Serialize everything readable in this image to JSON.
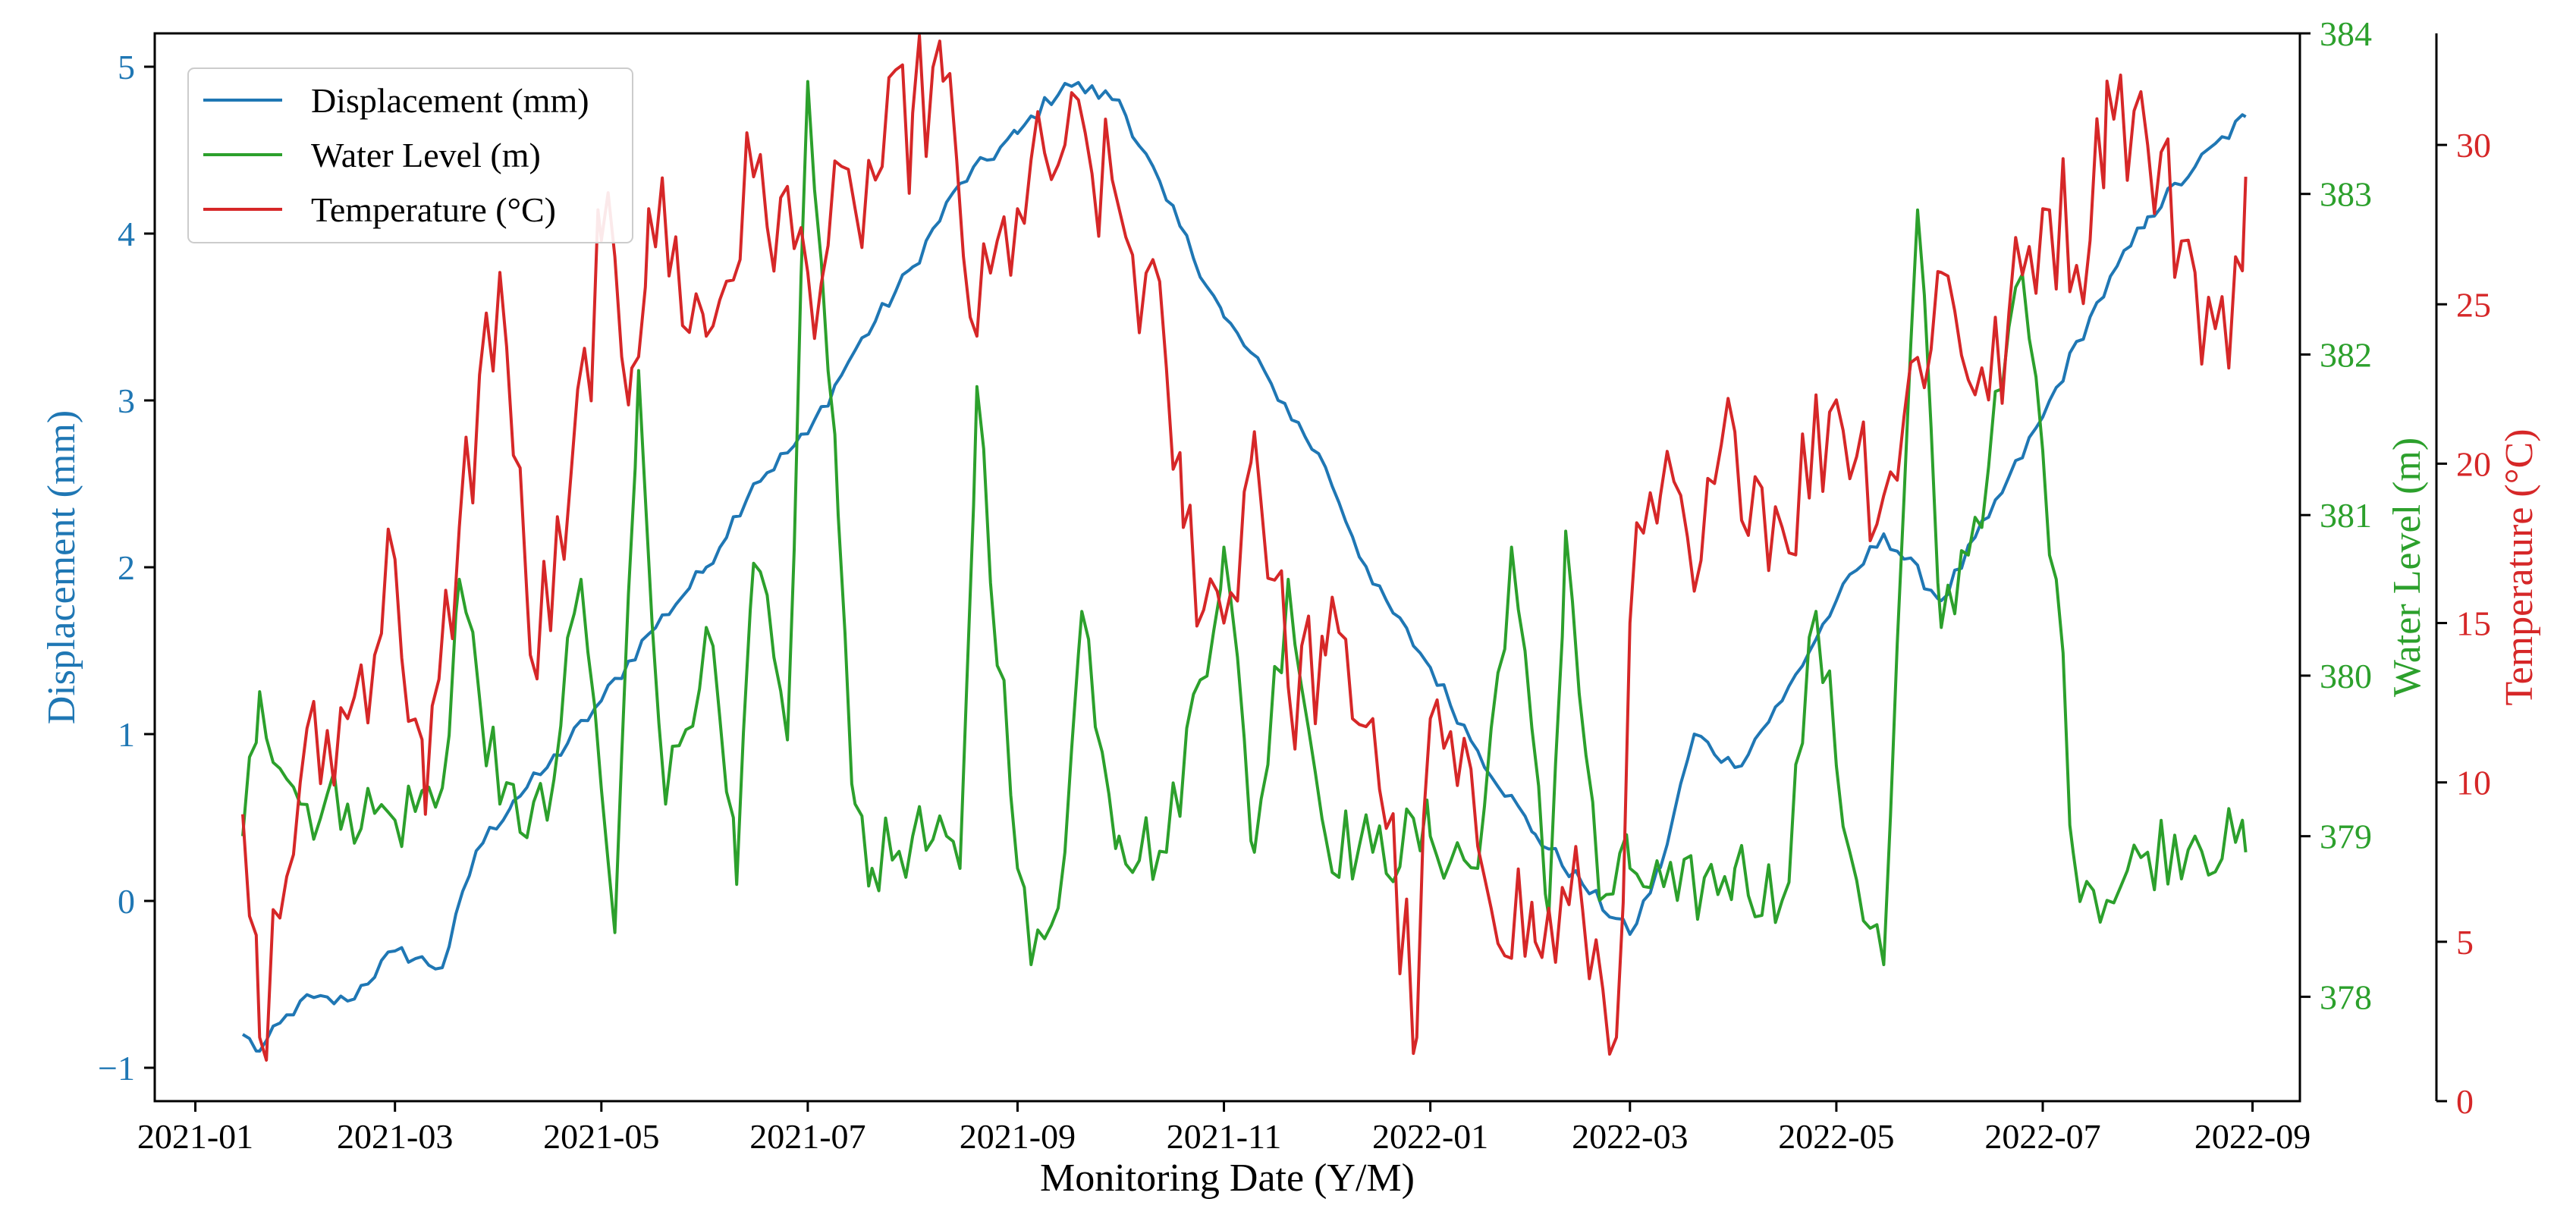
{
  "chart_data": {
    "type": "line",
    "xlabel": "Monitoring Date (Y/M)",
    "x_ticks": [
      "2021-01",
      "2021-03",
      "2021-05",
      "2021-07",
      "2021-09",
      "2021-11",
      "2022-01",
      "2022-03",
      "2022-05",
      "2022-07",
      "2022-09"
    ],
    "x_range": [
      "2020-12-20",
      "2022-09-15"
    ],
    "legend_position": "top-left",
    "grid": false,
    "axes": {
      "left": {
        "label": "Displacement (mm)",
        "color": "#1f77b4",
        "ylim": [
          -1.2,
          5.2
        ],
        "ticks": [
          "−1",
          "0",
          "1",
          "2",
          "3",
          "4",
          "5"
        ]
      },
      "right1": {
        "label": "Water Level (m)",
        "color": "#2ca02c",
        "ylim": [
          377.35,
          384.0
        ],
        "ticks": [
          "378",
          "379",
          "380",
          "381",
          "382",
          "383",
          "384"
        ]
      },
      "right2": {
        "label": "Temperature (°C)",
        "color": "#d62728",
        "ylim": [
          0,
          33.5
        ],
        "ticks": [
          "0",
          "5",
          "10",
          "15",
          "20",
          "25",
          "30"
        ]
      }
    },
    "series": [
      {
        "name": "Displacement (mm)",
        "axis": "left",
        "color": "#1f77b4",
        "points": [
          [
            "2021-01-15",
            -0.8
          ],
          [
            "2021-01-20",
            -0.9
          ],
          [
            "2021-02-01",
            -0.6
          ],
          [
            "2021-02-15",
            -0.6
          ],
          [
            "2021-03-01",
            -0.3
          ],
          [
            "2021-03-15",
            -0.4
          ],
          [
            "2021-03-25",
            0.3
          ],
          [
            "2021-04-05",
            0.6
          ],
          [
            "2021-04-15",
            0.8
          ],
          [
            "2021-05-01",
            1.2
          ],
          [
            "2021-05-15",
            1.6
          ],
          [
            "2021-06-01",
            2.0
          ],
          [
            "2021-06-15",
            2.5
          ],
          [
            "2021-07-01",
            2.8
          ],
          [
            "2021-07-15",
            3.3
          ],
          [
            "2021-08-01",
            3.8
          ],
          [
            "2021-08-15",
            4.3
          ],
          [
            "2021-09-01",
            4.6
          ],
          [
            "2021-09-15",
            4.9
          ],
          [
            "2021-10-01",
            4.8
          ],
          [
            "2021-10-15",
            4.2
          ],
          [
            "2021-11-01",
            3.5
          ],
          [
            "2021-11-15",
            3.1
          ],
          [
            "2021-12-01",
            2.6
          ],
          [
            "2021-12-15",
            1.9
          ],
          [
            "2022-01-01",
            1.4
          ],
          [
            "2022-01-15",
            0.9
          ],
          [
            "2022-02-01",
            0.4
          ],
          [
            "2022-02-15",
            0.1
          ],
          [
            "2022-03-01",
            -0.2
          ],
          [
            "2022-03-10",
            0.2
          ],
          [
            "2022-03-20",
            1.0
          ],
          [
            "2022-04-01",
            0.8
          ],
          [
            "2022-04-15",
            1.2
          ],
          [
            "2022-05-01",
            1.8
          ],
          [
            "2022-05-15",
            2.2
          ],
          [
            "2022-06-01",
            1.8
          ],
          [
            "2022-06-15",
            2.3
          ],
          [
            "2022-07-01",
            2.9
          ],
          [
            "2022-07-15",
            3.5
          ],
          [
            "2022-08-01",
            4.1
          ],
          [
            "2022-08-15",
            4.4
          ],
          [
            "2022-08-30",
            4.7
          ]
        ]
      },
      {
        "name": "Water Level (m)",
        "axis": "right1",
        "color": "#2ca02c",
        "points": [
          [
            "2021-01-15",
            379.0
          ],
          [
            "2021-01-20",
            379.9
          ],
          [
            "2021-02-01",
            379.2
          ],
          [
            "2021-02-15",
            379.2
          ],
          [
            "2021-03-01",
            379.1
          ],
          [
            "2021-03-15",
            379.3
          ],
          [
            "2021-03-20",
            380.6
          ],
          [
            "2021-04-01",
            379.2
          ],
          [
            "2021-04-15",
            379.1
          ],
          [
            "2021-04-25",
            380.6
          ],
          [
            "2021-05-05",
            378.4
          ],
          [
            "2021-05-12",
            381.9
          ],
          [
            "2021-05-20",
            379.2
          ],
          [
            "2021-06-01",
            380.3
          ],
          [
            "2021-06-10",
            378.7
          ],
          [
            "2021-06-15",
            380.7
          ],
          [
            "2021-06-25",
            379.6
          ],
          [
            "2021-07-01",
            383.7
          ],
          [
            "2021-07-10",
            381.0
          ],
          [
            "2021-07-15",
            379.2
          ],
          [
            "2021-07-20",
            378.8
          ],
          [
            "2021-08-01",
            379.0
          ],
          [
            "2021-08-15",
            378.8
          ],
          [
            "2021-08-20",
            381.8
          ],
          [
            "2021-09-01",
            378.8
          ],
          [
            "2021-09-05",
            378.2
          ],
          [
            "2021-09-15",
            378.9
          ],
          [
            "2021-09-20",
            380.4
          ],
          [
            "2021-10-01",
            379.0
          ],
          [
            "2021-10-15",
            378.9
          ],
          [
            "2021-11-01",
            380.8
          ],
          [
            "2021-11-10",
            378.9
          ],
          [
            "2021-11-20",
            380.6
          ],
          [
            "2021-12-01",
            379.0
          ],
          [
            "2021-12-15",
            378.9
          ],
          [
            "2022-01-01",
            379.0
          ],
          [
            "2022-01-15",
            378.8
          ],
          [
            "2022-01-25",
            380.8
          ],
          [
            "2022-02-05",
            378.5
          ],
          [
            "2022-02-10",
            380.9
          ],
          [
            "2022-02-20",
            378.6
          ],
          [
            "2022-03-01",
            378.8
          ],
          [
            "2022-03-15",
            378.6
          ],
          [
            "2022-04-01",
            378.8
          ],
          [
            "2022-04-15",
            378.6
          ],
          [
            "2022-04-25",
            380.4
          ],
          [
            "2022-05-05",
            378.9
          ],
          [
            "2022-05-15",
            378.2
          ],
          [
            "2022-05-25",
            382.9
          ],
          [
            "2022-06-01",
            380.3
          ],
          [
            "2022-06-15",
            381.3
          ],
          [
            "2022-06-25",
            382.5
          ],
          [
            "2022-07-05",
            380.6
          ],
          [
            "2022-07-10",
            378.9
          ],
          [
            "2022-07-20",
            378.6
          ],
          [
            "2022-08-01",
            378.9
          ],
          [
            "2022-08-15",
            379.0
          ],
          [
            "2022-08-30",
            378.9
          ]
        ]
      },
      {
        "name": "Temperature (°C)",
        "axis": "right2",
        "color": "#d62728",
        "points": [
          [
            "2021-01-15",
            9
          ],
          [
            "2021-01-20",
            2
          ],
          [
            "2021-02-01",
            10
          ],
          [
            "2021-02-15",
            12
          ],
          [
            "2021-03-01",
            17
          ],
          [
            "2021-03-10",
            9
          ],
          [
            "2021-03-20",
            18
          ],
          [
            "2021-04-01",
            26
          ],
          [
            "2021-04-10",
            14
          ],
          [
            "2021-04-20",
            17
          ],
          [
            "2021-05-01",
            27
          ],
          [
            "2021-05-10",
            23
          ],
          [
            "2021-05-15",
            28
          ],
          [
            "2021-06-01",
            24
          ],
          [
            "2021-06-15",
            29
          ],
          [
            "2021-07-01",
            26
          ],
          [
            "2021-07-15",
            28
          ],
          [
            "2021-08-01",
            31
          ],
          [
            "2021-08-10",
            32
          ],
          [
            "2021-08-20",
            24
          ],
          [
            "2021-09-01",
            28
          ],
          [
            "2021-09-15",
            30
          ],
          [
            "2021-10-01",
            28
          ],
          [
            "2021-10-15",
            23
          ],
          [
            "2021-10-20",
            18
          ],
          [
            "2021-11-01",
            15
          ],
          [
            "2021-11-10",
            21
          ],
          [
            "2021-11-20",
            13
          ],
          [
            "2021-12-01",
            14
          ],
          [
            "2021-12-15",
            12
          ],
          [
            "2021-12-28",
            2
          ],
          [
            "2022-01-01",
            12
          ],
          [
            "2022-01-15",
            8
          ],
          [
            "2022-02-01",
            5
          ],
          [
            "2022-02-15",
            6
          ],
          [
            "2022-02-25",
            2
          ],
          [
            "2022-03-01",
            15
          ],
          [
            "2022-03-10",
            19
          ],
          [
            "2022-03-20",
            16
          ],
          [
            "2022-04-01",
            21
          ],
          [
            "2022-04-15",
            18
          ],
          [
            "2022-05-01",
            22
          ],
          [
            "2022-05-15",
            19
          ],
          [
            "2022-06-01",
            26
          ],
          [
            "2022-06-15",
            22
          ],
          [
            "2022-07-01",
            28
          ],
          [
            "2022-07-15",
            27
          ],
          [
            "2022-07-20",
            32
          ],
          [
            "2022-08-01",
            30
          ],
          [
            "2022-08-15",
            26
          ],
          [
            "2022-08-25",
            23
          ],
          [
            "2022-08-30",
            29
          ]
        ]
      }
    ]
  }
}
